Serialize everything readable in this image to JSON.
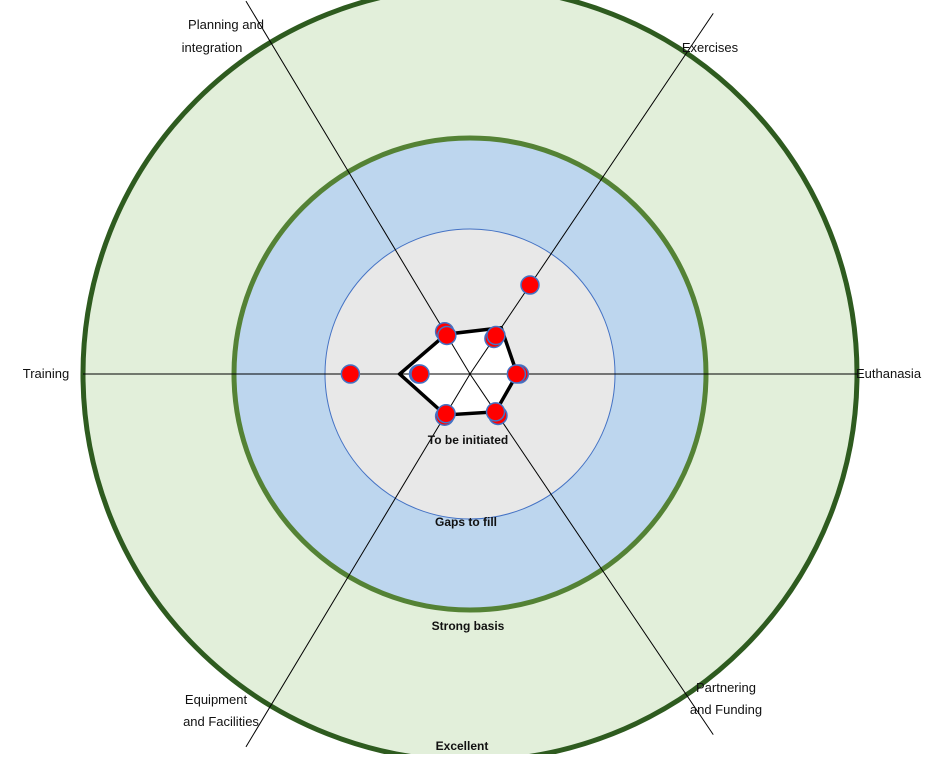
{
  "chart_data": {
    "type": "radar",
    "title": "",
    "axes": [
      {
        "name": "Euthanasia",
        "angle_deg": 0
      },
      {
        "name": "Exercises",
        "angle_deg": -56
      },
      {
        "name": "Planning and integration",
        "angle_deg": -121
      },
      {
        "name": "Training",
        "angle_deg": 180
      },
      {
        "name": "Equipment and Facilities",
        "angle_deg": 121
      },
      {
        "name": "Partnering and Funding",
        "angle_deg": 56
      }
    ],
    "rings": [
      {
        "label": "To be initiated",
        "outer_level": 1,
        "fill": "#ffffff"
      },
      {
        "label": "Gaps to fill",
        "outer_level": 2,
        "fill": "#e8e8e8"
      },
      {
        "label": "Strong basis",
        "outer_level": 3,
        "fill": "#bdd6ee"
      },
      {
        "label": "Excellent",
        "outer_level": 4,
        "fill": "#e2efda"
      }
    ],
    "score_polygon": [
      {
        "axis": "Euthanasia",
        "value": 0.65
      },
      {
        "axis": "Exercises",
        "value": 0.77
      },
      {
        "axis": "Planning and integration",
        "value": 0.64
      },
      {
        "axis": "Training",
        "value": 0.97
      },
      {
        "axis": "Equipment and Facilities",
        "value": 0.66
      },
      {
        "axis": "Partnering and Funding",
        "value": 0.63
      }
    ],
    "points": [
      {
        "axis": "Euthanasia",
        "value": 0.68
      },
      {
        "axis": "Euthanasia",
        "value": 0.64
      },
      {
        "axis": "Exercises",
        "value": 1.48
      },
      {
        "axis": "Exercises",
        "value": 0.59
      },
      {
        "axis": "Exercises",
        "value": 0.64
      },
      {
        "axis": "Planning and integration",
        "value": 0.68
      },
      {
        "axis": "Planning and integration",
        "value": 0.62
      },
      {
        "axis": "Training",
        "value": 1.65
      },
      {
        "axis": "Training",
        "value": 0.71
      },
      {
        "axis": "Training",
        "value": 0.69
      },
      {
        "axis": "Equipment and Facilities",
        "value": 0.68
      },
      {
        "axis": "Equipment and Facilities",
        "value": 0.64
      },
      {
        "axis": "Partnering and Funding",
        "value": 0.69
      },
      {
        "axis": "Partnering and Funding",
        "value": 0.63
      }
    ]
  },
  "labels": {
    "euthanasia": "Euthanasia",
    "exercises": "Exercises",
    "planning_line1": "Planning and",
    "planning_line2": "integration",
    "training": "Training",
    "equipment_line1": "Equipment",
    "equipment_line2": "and Facilities",
    "partnering_line1": "Partnering",
    "partnering_line2": "and Funding",
    "ring_to_be_initiated": "To be initiated",
    "ring_gaps": "Gaps to fill",
    "ring_strong": "Strong basis",
    "ring_excellent": "Excellent"
  },
  "colors": {
    "outer_ring_stroke": "#2e5b1f",
    "middle_ring_stroke": "#548235",
    "inner_ring_stroke": "#4472c4",
    "point_fill": "#ff0000",
    "point_stroke": "#4472c4",
    "polygon_stroke": "#000000"
  }
}
